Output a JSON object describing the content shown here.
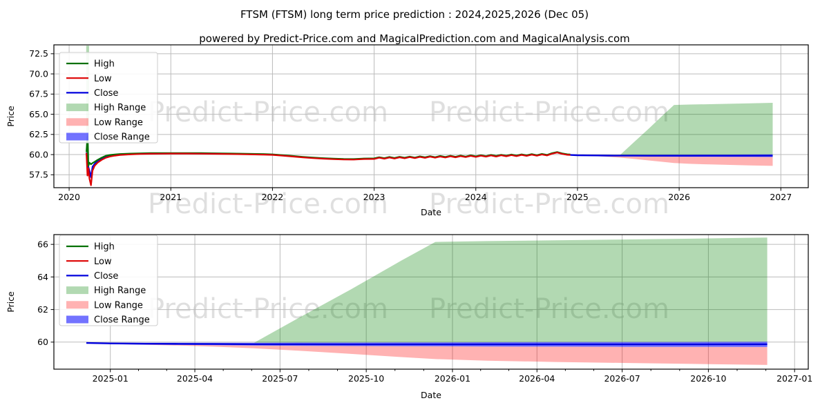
{
  "header": {
    "title": "FTSM (FTSM) long term price prediction : 2024,2025,2026 (Dec 05)",
    "subtitle": "powered by Predict-Price.com and MagicalPrediction.com and MagicalAnalysis.com"
  },
  "watermark": {
    "text": "Predict-Price.com",
    "color": "#000000",
    "opacity": 0.12
  },
  "colors": {
    "high": "#007000",
    "low": "#dd0000",
    "close": "#0000dd",
    "high_range": "rgba(0,128,0,0.30)",
    "low_range": "rgba(255,0,0,0.30)",
    "close_range": "rgba(0,0,255,0.55)",
    "grid": "#bbbbbb",
    "spine": "#000000"
  },
  "legend": {
    "items": [
      {
        "label": "High",
        "type": "line",
        "color": "#007000"
      },
      {
        "label": "Low",
        "type": "line",
        "color": "#dd0000"
      },
      {
        "label": "Close",
        "type": "line",
        "color": "#0000dd"
      },
      {
        "label": "High Range",
        "type": "patch",
        "color": "rgba(0,128,0,0.30)"
      },
      {
        "label": "Low Range",
        "type": "patch",
        "color": "rgba(255,0,0,0.30)"
      },
      {
        "label": "Close Range",
        "type": "patch",
        "color": "rgba(0,0,255,0.55)"
      }
    ]
  },
  "chart_data": [
    {
      "type": "line",
      "name": "price-history-and-prediction",
      "xlabel": "Date",
      "ylabel": "Price",
      "xlim": [
        2019.85,
        2027.27
      ],
      "ylim": [
        55.9,
        73.6
      ],
      "xticks": {
        "values": [
          2020,
          2021,
          2022,
          2023,
          2024,
          2025,
          2026,
          2027
        ],
        "labels": [
          "2020",
          "2021",
          "2022",
          "2023",
          "2024",
          "2025",
          "2026",
          "2027"
        ]
      },
      "yticks": {
        "values": [
          57.5,
          60.0,
          62.5,
          65.0,
          67.5,
          70.0,
          72.5
        ],
        "labels": [
          "57.5",
          "60.0",
          "62.5",
          "65.0",
          "67.5",
          "70.0",
          "72.5"
        ]
      },
      "series": {
        "x": [
          2020.17,
          2020.18,
          2020.19,
          2020.2,
          2020.215,
          2020.23,
          2020.25,
          2020.28,
          2020.32,
          2020.36,
          2020.4,
          2020.45,
          2020.5,
          2020.6,
          2020.7,
          2020.8,
          2020.9,
          2021.0,
          2021.15,
          2021.3,
          2021.45,
          2021.6,
          2021.75,
          2021.9,
          2022.0,
          2022.1,
          2022.2,
          2022.3,
          2022.4,
          2022.5,
          2022.6,
          2022.7,
          2022.8,
          2022.9,
          2023.0,
          2023.05,
          2023.1,
          2023.15,
          2023.2,
          2023.25,
          2023.3,
          2023.35,
          2023.4,
          2023.45,
          2023.5,
          2023.55,
          2023.6,
          2023.65,
          2023.7,
          2023.75,
          2023.8,
          2023.85,
          2023.9,
          2023.95,
          2024.0,
          2024.05,
          2024.1,
          2024.15,
          2024.2,
          2024.25,
          2024.3,
          2024.35,
          2024.4,
          2024.45,
          2024.5,
          2024.55,
          2024.6,
          2024.65,
          2024.7,
          2024.75,
          2024.8,
          2024.85,
          2024.9,
          2024.93
        ],
        "high": [
          60.3,
          62.3,
          58.6,
          59.0,
          58.8,
          58.95,
          59.1,
          59.35,
          59.62,
          59.85,
          59.95,
          60.02,
          60.07,
          60.12,
          60.16,
          60.18,
          60.19,
          60.19,
          60.19,
          60.18,
          60.16,
          60.13,
          60.1,
          60.07,
          60.03,
          59.94,
          59.83,
          59.72,
          59.63,
          59.56,
          59.5,
          59.46,
          59.45,
          59.52,
          59.53,
          59.68,
          59.56,
          59.71,
          59.58,
          59.73,
          59.61,
          59.76,
          59.63,
          59.78,
          59.66,
          59.81,
          59.68,
          59.83,
          59.71,
          59.86,
          59.73,
          59.88,
          59.76,
          59.91,
          59.78,
          59.93,
          59.81,
          59.96,
          59.83,
          59.98,
          59.86,
          60.01,
          59.88,
          60.03,
          59.91,
          60.06,
          59.93,
          60.08,
          59.96,
          60.18,
          60.32,
          60.15,
          60.04,
          60.02
        ],
        "low": [
          60.2,
          57.4,
          58.3,
          57.0,
          56.2,
          58.0,
          58.6,
          59.0,
          59.35,
          59.6,
          59.76,
          59.87,
          59.95,
          60.02,
          60.07,
          60.1,
          60.11,
          60.12,
          60.12,
          60.11,
          60.09,
          60.06,
          60.03,
          60.0,
          59.96,
          59.87,
          59.76,
          59.65,
          59.56,
          59.49,
          59.43,
          59.39,
          59.38,
          59.45,
          59.46,
          59.61,
          59.49,
          59.64,
          59.51,
          59.66,
          59.54,
          59.69,
          59.56,
          59.71,
          59.59,
          59.74,
          59.61,
          59.76,
          59.64,
          59.79,
          59.66,
          59.81,
          59.69,
          59.84,
          59.71,
          59.86,
          59.74,
          59.89,
          59.76,
          59.91,
          59.79,
          59.94,
          59.81,
          59.96,
          59.84,
          59.99,
          59.86,
          60.01,
          59.89,
          60.11,
          60.25,
          60.08,
          59.97,
          59.95
        ],
        "close": [
          60.25,
          59.0,
          58.45,
          58.0,
          57.2,
          58.5,
          58.85,
          59.18,
          59.5,
          59.73,
          59.86,
          59.95,
          60.01,
          60.07,
          60.12,
          60.14,
          60.15,
          60.16,
          60.16,
          60.15,
          60.13,
          60.1,
          60.07,
          60.04,
          60.0,
          59.91,
          59.8,
          59.69,
          59.6,
          59.53,
          59.47,
          59.43,
          59.42,
          59.49,
          59.49,
          59.64,
          59.52,
          59.67,
          59.54,
          59.69,
          59.57,
          59.72,
          59.59,
          59.74,
          59.62,
          59.77,
          59.64,
          59.79,
          59.67,
          59.82,
          59.69,
          59.84,
          59.72,
          59.87,
          59.74,
          59.89,
          59.77,
          59.92,
          59.79,
          59.94,
          59.82,
          59.97,
          59.84,
          59.99,
          59.87,
          60.02,
          59.89,
          60.04,
          59.92,
          60.14,
          60.28,
          60.11,
          60.0,
          59.98
        ]
      },
      "prediction": {
        "x": [
          2024.93,
          2025.0,
          2025.1,
          2025.2,
          2025.3,
          2025.42,
          2025.55,
          2025.7,
          2025.85,
          2025.95,
          2026.1,
          2026.3,
          2026.5,
          2026.7,
          2026.92
        ],
        "close": [
          59.95,
          59.92,
          59.9,
          59.89,
          59.88,
          59.87,
          59.87,
          59.86,
          59.86,
          59.86,
          59.86,
          59.86,
          59.86,
          59.86,
          59.87
        ],
        "close_upper": [
          59.98,
          59.97,
          59.96,
          59.96,
          59.96,
          59.96,
          59.97,
          59.97,
          59.98,
          59.98,
          59.99,
          60.0,
          60.0,
          60.01,
          60.02
        ],
        "close_lower": [
          59.92,
          59.88,
          59.85,
          59.83,
          59.81,
          59.79,
          59.77,
          59.76,
          59.75,
          59.74,
          59.73,
          59.72,
          59.71,
          59.71,
          59.7
        ],
        "high_upper": [
          59.98,
          59.97,
          59.96,
          59.96,
          59.96,
          59.96,
          61.48,
          63.2,
          65.0,
          66.15,
          66.2,
          66.25,
          66.3,
          66.35,
          66.42
        ],
        "low_lower": [
          59.92,
          59.88,
          59.84,
          59.79,
          59.72,
          59.62,
          59.47,
          59.28,
          59.08,
          58.96,
          58.86,
          58.78,
          58.72,
          58.66,
          58.6
        ]
      },
      "spike_band": {
        "x0": 2020.168,
        "x1": 2020.196,
        "top": 73.5,
        "bottom": 59.5
      }
    },
    {
      "type": "line",
      "name": "prediction-zoom",
      "xlabel": "Date",
      "ylabel": "Price",
      "xlim": [
        2024.835,
        2027.04
      ],
      "ylim": [
        58.34,
        66.6
      ],
      "xticks": {
        "values": [
          2025.0,
          2025.247,
          2025.496,
          2025.748,
          2026.0,
          2026.247,
          2026.496,
          2026.748,
          2027.0
        ],
        "labels": [
          "2025-01",
          "2025-04",
          "2025-07",
          "2025-10",
          "2026-01",
          "2026-04",
          "2026-07",
          "2026-10",
          "2027-01"
        ]
      },
      "yticks": {
        "values": [
          60,
          62,
          64,
          66
        ],
        "labels": [
          "60",
          "62",
          "64",
          "66"
        ]
      },
      "prediction": {
        "x": [
          2024.93,
          2025.0,
          2025.1,
          2025.2,
          2025.3,
          2025.42,
          2025.55,
          2025.7,
          2025.85,
          2025.95,
          2026.1,
          2026.3,
          2026.5,
          2026.7,
          2026.92
        ],
        "close": [
          59.95,
          59.92,
          59.9,
          59.89,
          59.88,
          59.87,
          59.87,
          59.86,
          59.86,
          59.86,
          59.86,
          59.86,
          59.86,
          59.86,
          59.87
        ],
        "close_upper": [
          59.98,
          59.97,
          59.96,
          59.96,
          59.96,
          59.96,
          59.97,
          59.97,
          59.98,
          59.98,
          59.99,
          60.0,
          60.0,
          60.01,
          60.02
        ],
        "close_lower": [
          59.92,
          59.88,
          59.85,
          59.83,
          59.81,
          59.79,
          59.77,
          59.76,
          59.75,
          59.74,
          59.73,
          59.72,
          59.71,
          59.71,
          59.7
        ],
        "high_upper": [
          59.98,
          59.97,
          59.96,
          59.96,
          59.96,
          59.96,
          61.48,
          63.2,
          65.0,
          66.15,
          66.2,
          66.25,
          66.3,
          66.35,
          66.42
        ],
        "low_lower": [
          59.92,
          59.88,
          59.84,
          59.79,
          59.72,
          59.62,
          59.47,
          59.28,
          59.08,
          58.96,
          58.86,
          58.78,
          58.72,
          58.66,
          58.6
        ]
      }
    }
  ]
}
